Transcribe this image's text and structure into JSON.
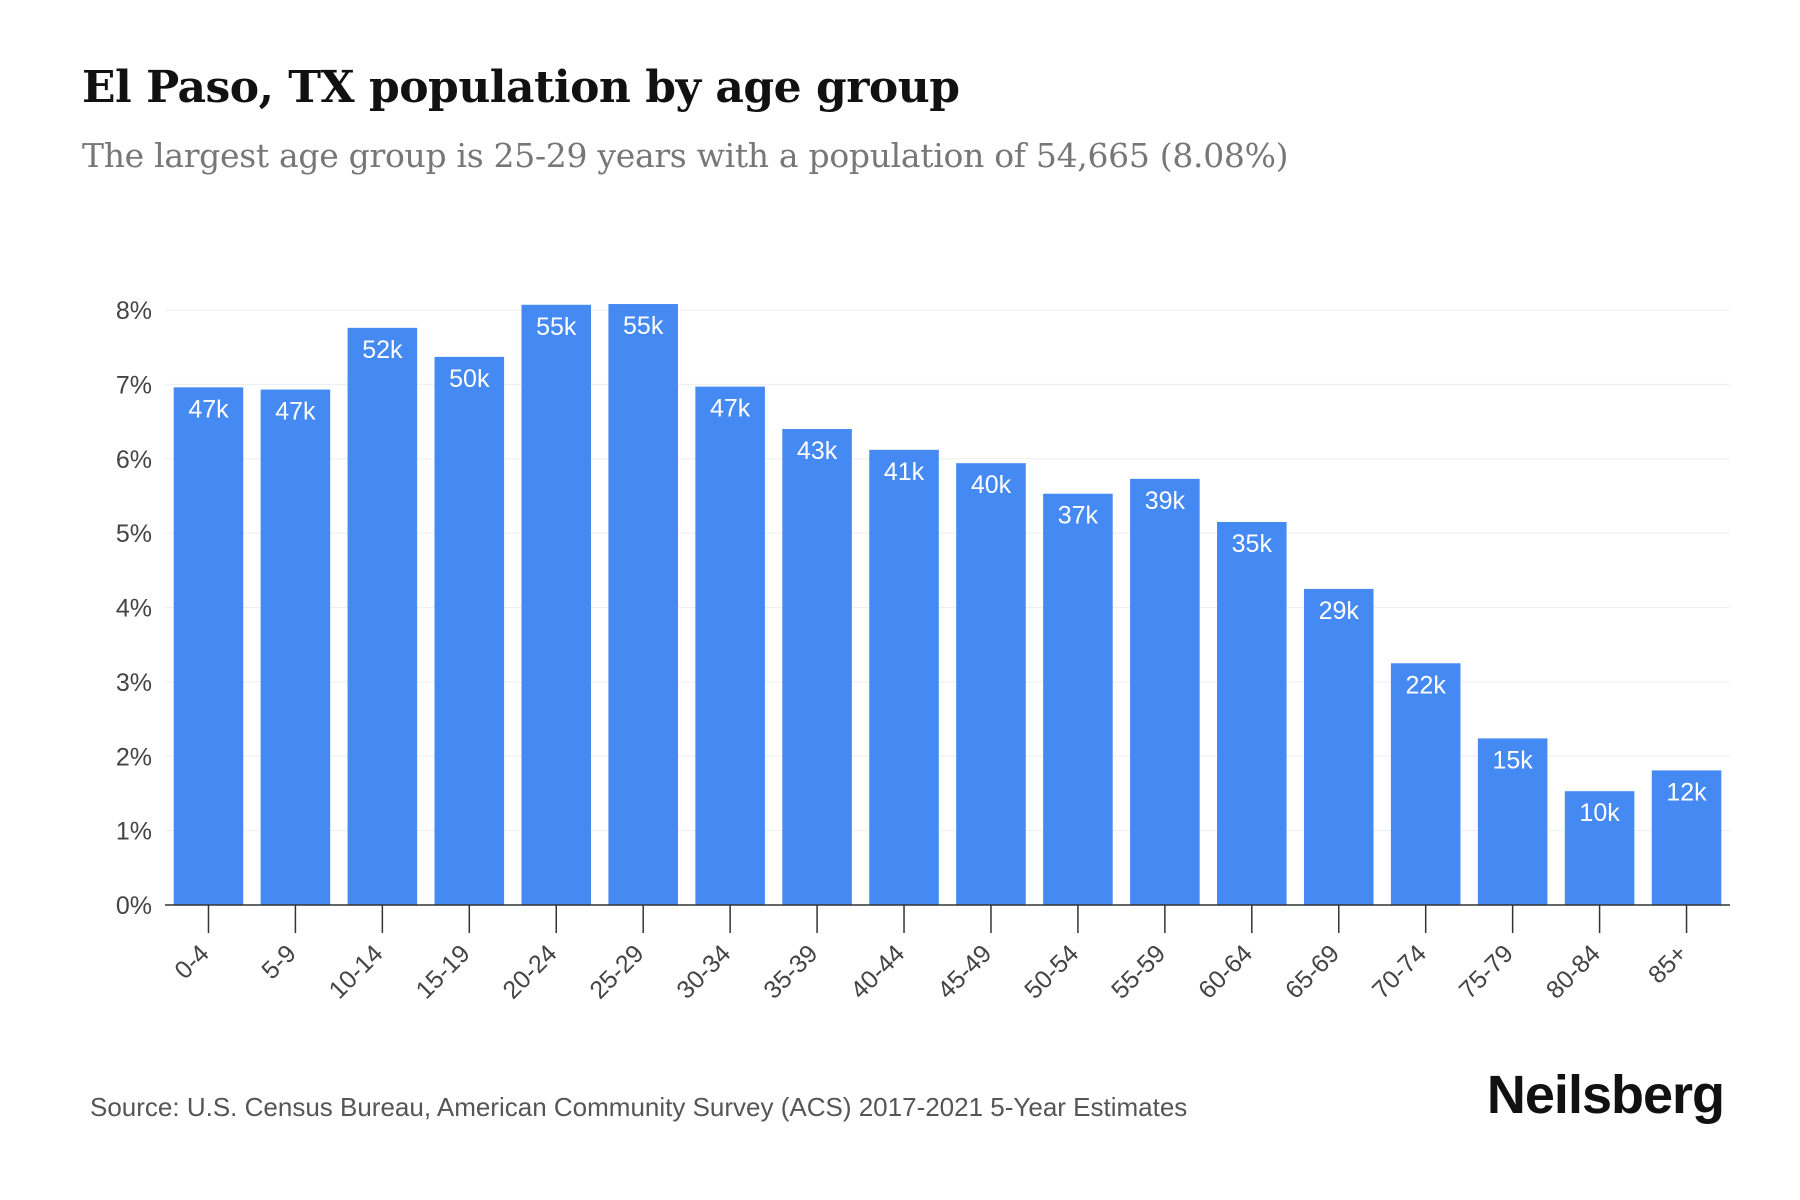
{
  "header": {
    "title": "El Paso, TX population by age group",
    "subtitle": "The largest age group is 25-29 years with a population of 54,665 (8.08%)"
  },
  "footer": {
    "source": "Source: U.S. Census Bureau, American Community Survey (ACS) 2017-2021 5-Year Estimates",
    "brand": "Neilsberg"
  },
  "colors": {
    "bar": "#4589F3",
    "bar_label": "#ffffff",
    "grid": "#eeeeee",
    "axis": "#333333",
    "tick_text": "#444444"
  },
  "chart_data": {
    "type": "bar",
    "title": "El Paso, TX population by age group",
    "xlabel": "",
    "ylabel": "",
    "ylim": [
      0,
      8
    ],
    "yticks": [
      0,
      1,
      2,
      3,
      4,
      5,
      6,
      7,
      8
    ],
    "ytick_labels": [
      "0%",
      "1%",
      "2%",
      "3%",
      "4%",
      "5%",
      "6%",
      "7%",
      "8%"
    ],
    "grid": true,
    "categories": [
      "0-4",
      "5-9",
      "10-14",
      "15-19",
      "20-24",
      "25-29",
      "30-34",
      "35-39",
      "40-44",
      "45-49",
      "50-54",
      "55-59",
      "60-64",
      "65-69",
      "70-74",
      "75-79",
      "80-84",
      "85+"
    ],
    "values": [
      6.96,
      6.93,
      7.76,
      7.37,
      8.07,
      8.08,
      6.97,
      6.4,
      6.12,
      5.94,
      5.53,
      5.73,
      5.15,
      4.25,
      3.25,
      2.24,
      1.53,
      1.81
    ],
    "data_labels": [
      "47k",
      "47k",
      "52k",
      "50k",
      "55k",
      "55k",
      "47k",
      "43k",
      "41k",
      "40k",
      "37k",
      "39k",
      "35k",
      "29k",
      "22k",
      "15k",
      "10k",
      "12k"
    ]
  }
}
